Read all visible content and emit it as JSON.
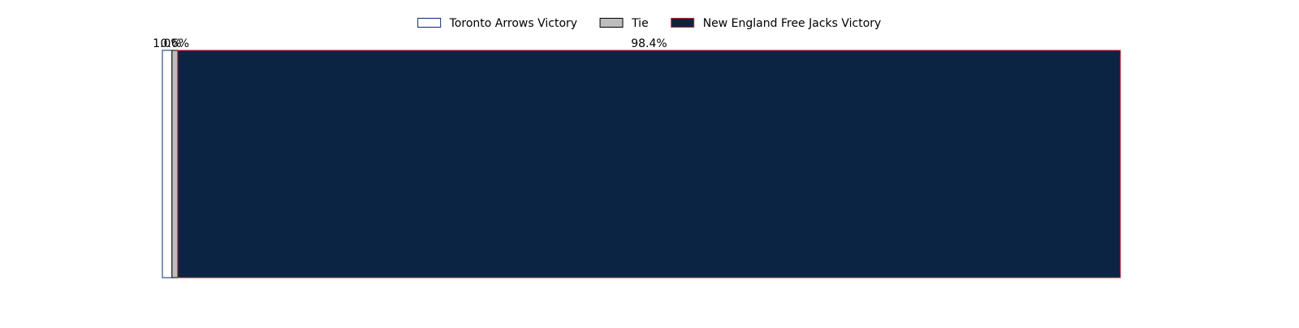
{
  "chart_data": {
    "type": "bar",
    "orientation": "horizontal",
    "stacked": true,
    "title": "",
    "xlabel": "",
    "ylabel": "",
    "xlim": [
      0,
      100
    ],
    "grid": false,
    "axes_visible": false,
    "legend_position": "top-center",
    "series": [
      {
        "name": "Toronto Arrows Victory",
        "value": 1.0,
        "label": "1.0%",
        "fill": "#ffffff",
        "edge": "#0b2a6b"
      },
      {
        "name": "Tie",
        "value": 0.6,
        "label": "0.6%",
        "fill": "#bdbdbd",
        "edge": "#000000"
      },
      {
        "name": "New England Free Jacks Victory",
        "value": 98.4,
        "label": "98.4%",
        "fill": "#0b2444",
        "edge": "#d0202e"
      }
    ]
  }
}
